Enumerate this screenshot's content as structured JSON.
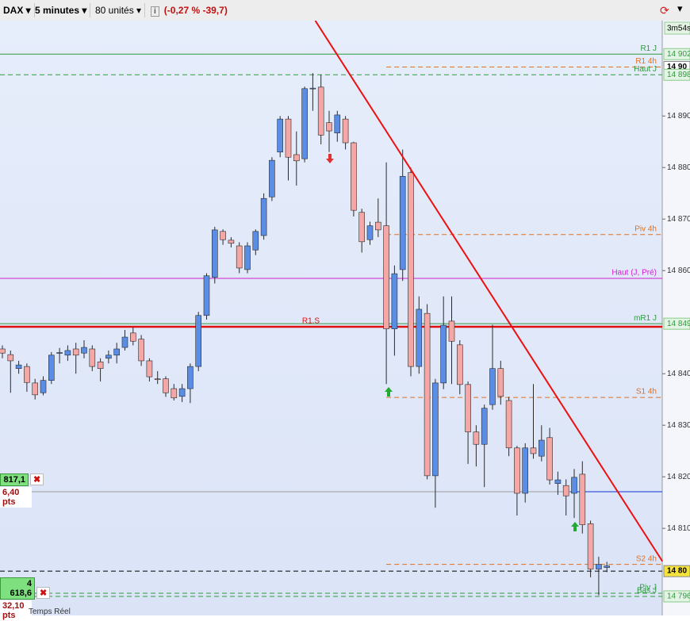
{
  "toolbar": {
    "instrument": "DAX",
    "interval": "5 minutes",
    "units": "80 unités",
    "change": "(-0,27 % -39,7)"
  },
  "chart_data": {
    "type": "candlestick",
    "up_color": "#5a8ee6",
    "down_color": "#f4a7a5",
    "edge_color": "#2a2a2a",
    "ylim": [
      14793.1,
      14908.5
    ],
    "yticks": [
      {
        "value": 14890,
        "label": "14 890"
      },
      {
        "value": 14880,
        "label": "14 880"
      },
      {
        "value": 14870,
        "label": "14 870"
      },
      {
        "value": 14860,
        "label": "14 860"
      },
      {
        "value": 14840,
        "label": "14 840"
      },
      {
        "value": 14830,
        "label": "14 830"
      },
      {
        "value": 14820,
        "label": "14 820"
      },
      {
        "value": 14810,
        "label": "14 810"
      }
    ],
    "candles": [
      [
        14844.8,
        14845.5,
        14843,
        14844
      ],
      [
        14843.7,
        14844.5,
        14836.3,
        14842.5
      ],
      [
        14841,
        14842.5,
        14840,
        14841.7
      ],
      [
        14841.4,
        14842,
        14836.5,
        14838.3
      ],
      [
        14838.2,
        14839,
        14835,
        14835.9
      ],
      [
        14836.3,
        14839.5,
        14835.8,
        14838.7
      ],
      [
        14838.7,
        14844.2,
        14838,
        14843.6
      ],
      [
        14844,
        14845,
        14842,
        14844.1
      ],
      [
        14843.6,
        14845.5,
        14842.5,
        14844.5
      ],
      [
        14844.8,
        14846,
        14840,
        14843.6
      ],
      [
        14844,
        14846.5,
        14843,
        14845.1
      ],
      [
        14844.8,
        14845.5,
        14840.5,
        14841.4
      ],
      [
        14842.3,
        14843,
        14838.5,
        14841
      ],
      [
        14843,
        14844.5,
        14842,
        14843.6
      ],
      [
        14843.6,
        14846,
        14842,
        14844.8
      ],
      [
        14845.1,
        14848.5,
        14844.5,
        14847.1
      ],
      [
        14847.9,
        14849,
        14845.5,
        14846.3
      ],
      [
        14846.7,
        14847.5,
        14841.5,
        14842.5
      ],
      [
        14842.5,
        14843,
        14838.5,
        14839.4
      ],
      [
        14839,
        14840.5,
        14838,
        14838.9
      ],
      [
        14839,
        14839.5,
        14835.5,
        14836.3
      ],
      [
        14837.1,
        14838,
        14834.8,
        14835.3
      ],
      [
        14835.6,
        14838,
        14834.5,
        14837.1
      ],
      [
        14837.1,
        14842,
        14834.3,
        14841.4
      ],
      [
        14841.4,
        14852,
        14840.5,
        14851.3
      ],
      [
        14851.3,
        14859.5,
        14850.5,
        14859
      ],
      [
        14858.7,
        14868.5,
        14857.5,
        14867.9
      ],
      [
        14867.6,
        14868,
        14865,
        14866
      ],
      [
        14865.9,
        14866.5,
        14864.5,
        14865.3
      ],
      [
        14864.8,
        14865.5,
        14859.5,
        14860.5
      ],
      [
        14860.2,
        14865.5,
        14859.5,
        14864.8
      ],
      [
        14864,
        14868,
        14863,
        14867.6
      ],
      [
        14866.8,
        14875,
        14866,
        14874
      ],
      [
        14874.3,
        14882,
        14873.5,
        14881.4
      ],
      [
        14883,
        14890,
        14882,
        14889.4
      ],
      [
        14889.4,
        14890,
        14877.5,
        14882
      ],
      [
        14882.5,
        14887,
        14876.5,
        14881.3
      ],
      [
        14881.7,
        14895.7,
        14881,
        14895.3
      ],
      [
        14895.3,
        14898.3,
        14891,
        14895.4
      ],
      [
        14895.6,
        14898,
        14884.5,
        14886.3
      ],
      [
        14888.7,
        14891,
        14883,
        14887.1
      ],
      [
        14886.7,
        14891,
        14885,
        14890.2
      ],
      [
        14889.4,
        14890,
        14883.5,
        14884.8
      ],
      [
        14884.8,
        14885,
        14870.5,
        14871.7
      ],
      [
        14871.3,
        14872,
        14863.5,
        14865.6
      ],
      [
        14866,
        14869.5,
        14865,
        14868.7
      ],
      [
        14869.4,
        14874,
        14866.5,
        14867.9
      ],
      [
        14868.7,
        14881,
        14838,
        14848.7
      ],
      [
        14848.7,
        14861,
        14843.5,
        14859.4
      ],
      [
        14860.2,
        14883.5,
        14858,
        14878.3
      ],
      [
        14879,
        14880,
        14839.5,
        14841.4
      ],
      [
        14841.4,
        14855,
        14840,
        14852.5
      ],
      [
        14851.7,
        14853.5,
        14819.5,
        14820.2
      ],
      [
        14820.2,
        14839,
        14814,
        14838.2
      ],
      [
        14838.2,
        14855,
        14837,
        14849.4
      ],
      [
        14850.2,
        14855,
        14838,
        14846.3
      ],
      [
        14845.6,
        14846.5,
        14836,
        14837.9
      ],
      [
        14837.9,
        14838.5,
        14822.5,
        14828.7
      ],
      [
        14828.7,
        14830,
        14822,
        14826.3
      ],
      [
        14826.3,
        14834,
        14818,
        14833.3
      ],
      [
        14834,
        14849.5,
        14833,
        14841
      ],
      [
        14841,
        14842.5,
        14834,
        14835.6
      ],
      [
        14834.8,
        14835.5,
        14824,
        14825.6
      ],
      [
        14825.6,
        14826,
        14812.5,
        14816.8
      ],
      [
        14816.8,
        14826.5,
        14815,
        14825.6
      ],
      [
        14825.6,
        14838,
        14823.5,
        14824.5
      ],
      [
        14824,
        14830,
        14823,
        14827.1
      ],
      [
        14827.6,
        14829.5,
        14818.5,
        14819.4
      ],
      [
        14818.7,
        14821,
        14816.5,
        14819.4
      ],
      [
        14818.3,
        14819.5,
        14812.5,
        14816.3
      ],
      [
        14816.8,
        14821.5,
        14812,
        14819.9
      ],
      [
        14820.5,
        14823,
        14809,
        14810.7
      ],
      [
        14810.9,
        14811.5,
        14800.5,
        14802.1
      ],
      [
        14802.1,
        14804.5,
        14797,
        14803
      ],
      [
        14802.4,
        14803.5,
        14801.5,
        14802.7
      ]
    ],
    "levels": [
      {
        "name": "R1 J",
        "value": 14902,
        "color": "#2e9a3e",
        "dash": false,
        "tag": {
          "text": "14 902",
          "bg": "#e4f4e4",
          "color": "#2e9a3e"
        }
      },
      {
        "name": "R1 4h",
        "value": 14899.5,
        "color": "#e07020",
        "dash": true,
        "from": 47,
        "tag": {
          "text": "14 90",
          "bg": "#ffffff",
          "color": "#000000"
        }
      },
      {
        "name": "Haut J",
        "value": 14898,
        "color": "#2e9a3e",
        "dash": true,
        "tag": {
          "text": "14 898",
          "bg": "#e4f4e4",
          "color": "#2e9a3e"
        }
      },
      {
        "name": "Piv 4h",
        "value": 14867,
        "color": "#e07020",
        "dash": true,
        "from": 47
      },
      {
        "name": "Haut (J, Pré)",
        "value": 14858.5,
        "color": "#d020d0",
        "dash": false
      },
      {
        "name": "mR1 J",
        "value": 14849.7,
        "color": "#2e9a3e",
        "dash": false,
        "tag": {
          "text": "14 849",
          "bg": "#e4f4e4",
          "color": "#2e9a3e"
        }
      },
      {
        "name": "R1.S",
        "value": 14849.1,
        "color": "#e01010",
        "dash": false,
        "bold": true,
        "label_pos": "center"
      },
      {
        "name": "S1 4h",
        "value": 14835.4,
        "color": "#e07020",
        "dash": true,
        "from": 47
      },
      {
        "name": "S2 4h",
        "value": 14803,
        "color": "#e07020",
        "dash": true,
        "from": 47
      },
      {
        "name": "Piv J",
        "value": 14797.4,
        "color": "#2e9a3e",
        "dash": true
      },
      {
        "name": "Bas J",
        "value": 14796.8,
        "color": "#2e9a3e",
        "dash": true,
        "tag": {
          "text": "14 796",
          "bg": "#e4f4e4",
          "color": "#2e9a3e"
        }
      }
    ],
    "lines": [
      {
        "value": 14817.1,
        "color": "#9a9a9a",
        "dash": false
      },
      {
        "value": 14817.1,
        "color": "#1030d0",
        "dash": false,
        "from": 69.5
      },
      {
        "value": 14801.7,
        "color": "#000000",
        "dash": true,
        "tag": {
          "text": "14 80",
          "bg": "#f5e23a",
          "color": "#000000"
        }
      }
    ],
    "trendline": {
      "color": "#ee1010",
      "points": [
        [
          38.3,
          14908.5
        ],
        [
          80.8,
          14803.6
        ]
      ]
    },
    "timer": "3m54s",
    "orders": [
      {
        "price": "817,1",
        "pnl": "6,40 pts"
      },
      {
        "price": "4 618,6",
        "pnl": "32,10 pts"
      }
    ],
    "footer": "Temps Réel"
  }
}
